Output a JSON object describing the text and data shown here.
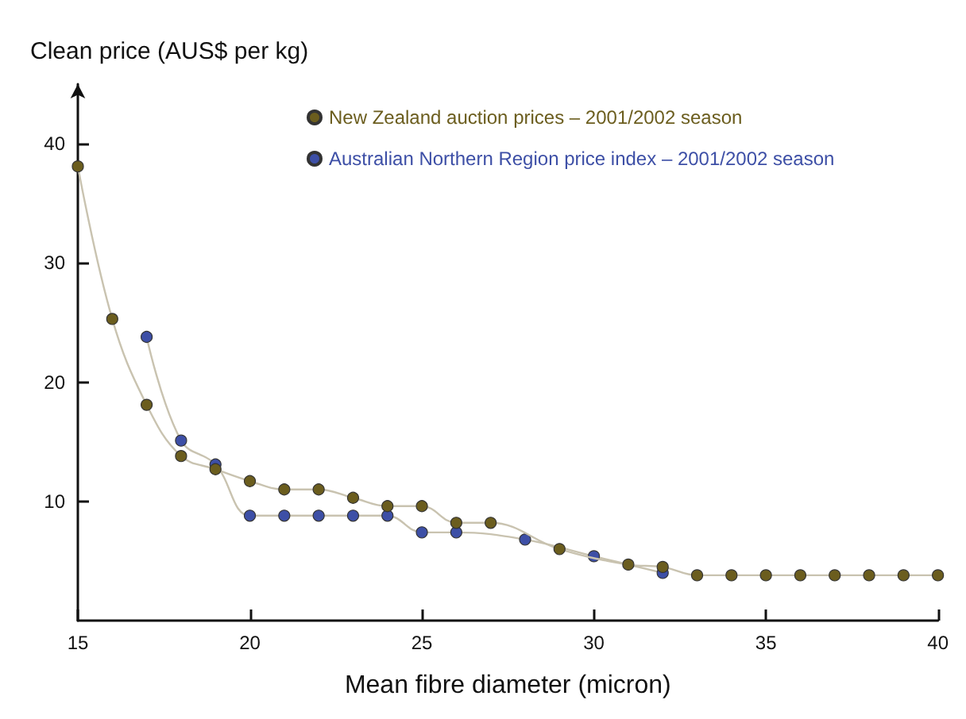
{
  "chart_data": {
    "type": "line",
    "xlabel": "Mean fibre diameter (micron)",
    "ylabel": "Clean price (AUS$ per kg)",
    "xlim": [
      15,
      40
    ],
    "xticks": [
      15,
      20,
      25,
      30,
      35,
      40
    ],
    "ylim": [
      0,
      45
    ],
    "yticks": [
      10,
      20,
      30,
      40
    ],
    "grid": false,
    "legend": "top right",
    "marker": "circle",
    "line_style": "solid",
    "series": [
      {
        "name": "New Zealand auction prices – 2001/2002 season",
        "color": "#6b5d1e",
        "x": [
          15,
          16,
          17,
          18,
          19,
          20,
          21,
          22,
          23,
          24,
          25,
          26,
          27,
          29,
          31,
          32,
          33,
          34,
          35,
          36,
          37,
          38,
          39,
          40
        ],
        "values": [
          38.1,
          25.3,
          18.1,
          13.8,
          12.7,
          11.7,
          11.0,
          11.0,
          10.3,
          9.6,
          9.6,
          8.2,
          8.2,
          6.0,
          4.7,
          4.5,
          3.8,
          3.8,
          3.8,
          3.8,
          3.8,
          3.8,
          3.8,
          3.8
        ]
      },
      {
        "name": "Australian Northern Region price index – 2001/2002 season",
        "color": "#3d4fa6",
        "x": [
          17,
          18,
          19,
          20,
          21,
          22,
          23,
          24,
          25,
          26,
          28,
          30,
          32
        ],
        "values": [
          23.8,
          15.1,
          13.1,
          8.8,
          8.8,
          8.8,
          8.8,
          8.8,
          7.4,
          7.4,
          6.8,
          5.4,
          4.0
        ]
      }
    ]
  }
}
